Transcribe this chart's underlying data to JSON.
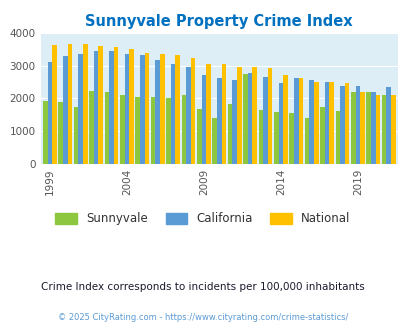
{
  "title": "Sunnyvale Property Crime Index",
  "years": [
    1999,
    2000,
    2001,
    2002,
    2003,
    2004,
    2005,
    2006,
    2007,
    2008,
    2009,
    2010,
    2011,
    2012,
    2013,
    2014,
    2015,
    2016,
    2017,
    2018,
    2019,
    2020,
    2021
  ],
  "sunnyvale": [
    1930,
    1900,
    1750,
    2220,
    2180,
    2100,
    2050,
    2040,
    2010,
    2110,
    1680,
    1400,
    1820,
    2760,
    1650,
    1570,
    1560,
    1410,
    1730,
    1620,
    2190,
    2180,
    2100
  ],
  "california": [
    3110,
    3300,
    3360,
    3440,
    3450,
    3350,
    3320,
    3160,
    3060,
    2960,
    2730,
    2620,
    2570,
    2770,
    2660,
    2460,
    2630,
    2560,
    2510,
    2390,
    2380,
    2200,
    2360
  ],
  "national": [
    3620,
    3660,
    3660,
    3610,
    3560,
    3520,
    3390,
    3360,
    3330,
    3230,
    3060,
    3050,
    2970,
    2950,
    2920,
    2730,
    2610,
    2510,
    2490,
    2470,
    2180,
    2110,
    2090
  ],
  "bar_colors": {
    "sunnyvale": "#8dc63f",
    "california": "#5b9bd5",
    "national": "#ffc000"
  },
  "bg_color": "#ddeef6",
  "ylim": [
    0,
    4000
  ],
  "yticks": [
    0,
    1000,
    2000,
    3000,
    4000
  ],
  "xtick_years": [
    1999,
    2004,
    2009,
    2014,
    2019
  ],
  "legend_labels": [
    "Sunnyvale",
    "California",
    "National"
  ],
  "note": "Crime Index corresponds to incidents per 100,000 inhabitants",
  "copyright": "© 2025 CityRating.com - https://www.cityrating.com/crime-statistics/",
  "title_color": "#0070c0",
  "note_color": "#1a1a2e",
  "copyright_color": "#5b9bd5"
}
